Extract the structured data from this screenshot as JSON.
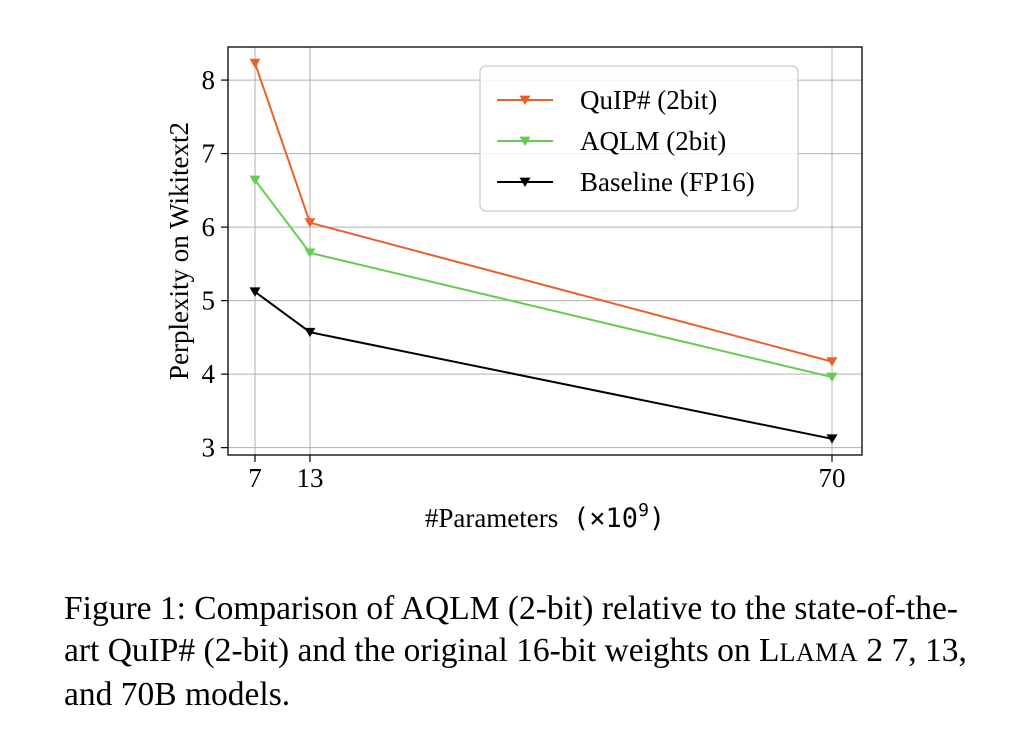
{
  "chart_data": {
    "type": "line",
    "categories": [
      "7",
      "13",
      "70"
    ],
    "xlabel": "#Parameters",
    "xlabel_unit_prefix": "(×10",
    "xlabel_unit_exp": "9",
    "xlabel_unit_suffix": ")",
    "ylabel": "Perplexity on Wikitext2",
    "ylim": [
      2.9,
      8.45
    ],
    "yticks": [
      "3",
      "4",
      "5",
      "6",
      "7",
      "8"
    ],
    "grid": true,
    "legend_position": "top-right",
    "series": [
      {
        "name": "QuIP# (2bit)",
        "color": "#e8612c",
        "marker": "triangle-down",
        "values": [
          8.23,
          6.06,
          4.17
        ]
      },
      {
        "name": "AQLM (2bit)",
        "color": "#65cd4d",
        "marker": "triangle-down",
        "values": [
          6.64,
          5.65,
          3.96
        ]
      },
      {
        "name": "Baseline (FP16)",
        "color": "#000000",
        "marker": "triangle-down",
        "values": [
          5.12,
          4.57,
          3.12
        ]
      }
    ]
  },
  "caption": {
    "prefix": "Figure 1: Comparison of AQLM (2-bit) relative to the state-of-the-art QuIP# (2-bit) and the original 16-bit weights on ",
    "smallcaps_first": "L",
    "smallcaps_rest": "LAMA",
    "suffix": " 2 7, 13, and 70B models."
  }
}
